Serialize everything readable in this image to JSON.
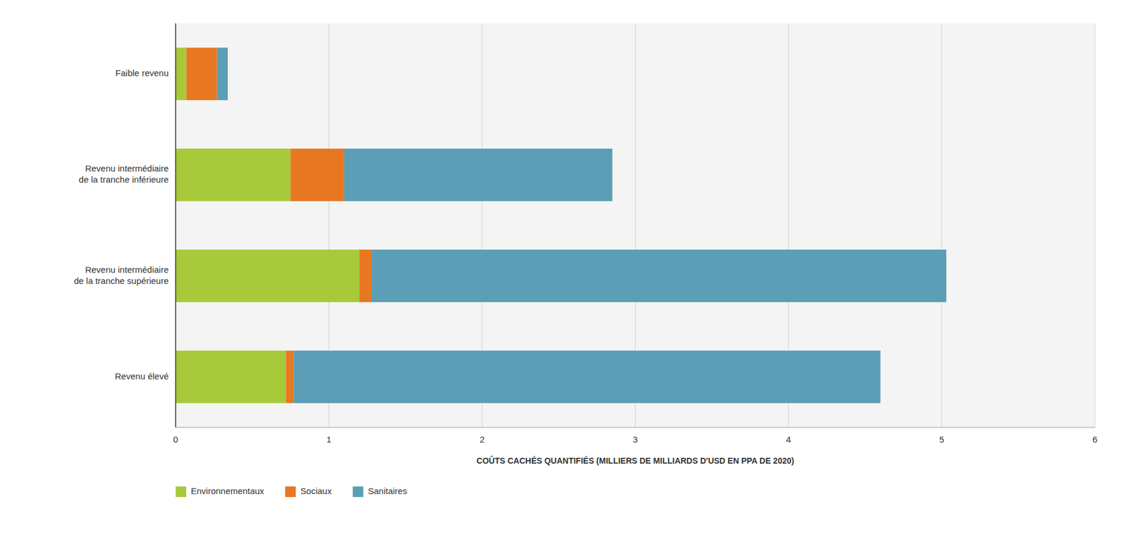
{
  "chart_data": {
    "type": "bar",
    "orientation": "horizontal",
    "stacked": true,
    "categories": [
      "Faible revenu",
      "Revenu intermédiaire\nde la tranche inférieure",
      "Revenu intermédiaire\nde la tranche supérieure",
      "Revenu élevé"
    ],
    "series": [
      {
        "name": "Environnementaux",
        "color": "#a8c93a",
        "values": [
          0.07,
          0.75,
          1.2,
          0.72
        ]
      },
      {
        "name": "Sociaux",
        "color": "#e87722",
        "values": [
          0.2,
          0.35,
          0.08,
          0.05
        ]
      },
      {
        "name": "Sanitaires",
        "color": "#5b9eb5",
        "values": [
          0.07,
          1.75,
          3.75,
          3.83
        ]
      }
    ],
    "xlabel": "COÛTS CACHÉS QUANTIFIÉS (MILLIERS DE MILLIARDS D'USD EN PPA DE 2020)",
    "xlim": [
      0,
      6
    ],
    "xticks": [
      0,
      1,
      2,
      3,
      4,
      5,
      6
    ],
    "grid": true,
    "legend": "bottom"
  }
}
